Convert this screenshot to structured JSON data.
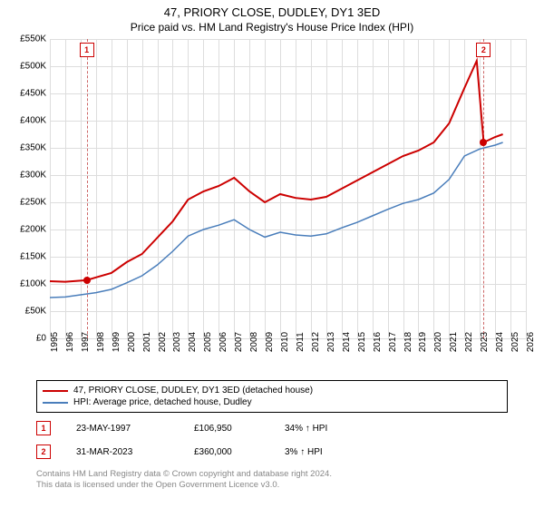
{
  "title": "47, PRIORY CLOSE, DUDLEY, DY1 3ED",
  "subtitle": "Price paid vs. HM Land Registry's House Price Index (HPI)",
  "chart": {
    "type": "line",
    "background_color": "#ffffff",
    "grid_color": "#dddddd",
    "grid_color_strong": "#eeeeee",
    "axis_color": "#000000",
    "y": {
      "min": 0,
      "max": 550000,
      "step": 50000,
      "labels": [
        "£0",
        "£50K",
        "£100K",
        "£150K",
        "£200K",
        "£250K",
        "£300K",
        "£350K",
        "£400K",
        "£450K",
        "£500K",
        "£550K"
      ],
      "label_fontsize": 10
    },
    "x": {
      "min": 1995,
      "max": 2026,
      "step": 1,
      "labels": [
        "1995",
        "1996",
        "1997",
        "1998",
        "1999",
        "2000",
        "2001",
        "2002",
        "2003",
        "2004",
        "2005",
        "2006",
        "2007",
        "2008",
        "2009",
        "2010",
        "2011",
        "2012",
        "2013",
        "2014",
        "2015",
        "2016",
        "2017",
        "2018",
        "2019",
        "2020",
        "2021",
        "2022",
        "2023",
        "2024",
        "2025",
        "2026"
      ],
      "label_fontsize": 10,
      "label_rotation": -90
    },
    "series": [
      {
        "name": "47, PRIORY CLOSE, DUDLEY, DY1 3ED (detached house)",
        "color": "#cc0000",
        "line_width": 2,
        "data": [
          [
            1995,
            105000
          ],
          [
            1996,
            104000
          ],
          [
            1997,
            106000
          ],
          [
            1997.4,
            106950
          ],
          [
            1998,
            112000
          ],
          [
            1999,
            120000
          ],
          [
            2000,
            140000
          ],
          [
            2001,
            155000
          ],
          [
            2002,
            185000
          ],
          [
            2003,
            215000
          ],
          [
            2004,
            255000
          ],
          [
            2005,
            270000
          ],
          [
            2006,
            280000
          ],
          [
            2007,
            295000
          ],
          [
            2008,
            270000
          ],
          [
            2009,
            250000
          ],
          [
            2010,
            265000
          ],
          [
            2011,
            258000
          ],
          [
            2012,
            255000
          ],
          [
            2013,
            260000
          ],
          [
            2014,
            275000
          ],
          [
            2015,
            290000
          ],
          [
            2016,
            305000
          ],
          [
            2017,
            320000
          ],
          [
            2018,
            335000
          ],
          [
            2019,
            345000
          ],
          [
            2020,
            360000
          ],
          [
            2021,
            395000
          ],
          [
            2022,
            460000
          ],
          [
            2022.8,
            510000
          ],
          [
            2023.25,
            360000
          ],
          [
            2024,
            370000
          ],
          [
            2024.5,
            375000
          ]
        ]
      },
      {
        "name": "HPI: Average price, detached house, Dudley",
        "color": "#4a7ebb",
        "line_width": 1.5,
        "data": [
          [
            1995,
            75000
          ],
          [
            1996,
            76000
          ],
          [
            1997,
            80000
          ],
          [
            1998,
            84000
          ],
          [
            1999,
            90000
          ],
          [
            2000,
            102000
          ],
          [
            2001,
            115000
          ],
          [
            2002,
            135000
          ],
          [
            2003,
            160000
          ],
          [
            2004,
            188000
          ],
          [
            2005,
            200000
          ],
          [
            2006,
            208000
          ],
          [
            2007,
            218000
          ],
          [
            2008,
            200000
          ],
          [
            2009,
            186000
          ],
          [
            2010,
            195000
          ],
          [
            2011,
            190000
          ],
          [
            2012,
            188000
          ],
          [
            2013,
            192000
          ],
          [
            2014,
            203000
          ],
          [
            2015,
            213000
          ],
          [
            2016,
            225000
          ],
          [
            2017,
            237000
          ],
          [
            2018,
            248000
          ],
          [
            2019,
            255000
          ],
          [
            2020,
            267000
          ],
          [
            2021,
            292000
          ],
          [
            2022,
            335000
          ],
          [
            2023,
            348000
          ],
          [
            2024,
            355000
          ],
          [
            2024.5,
            360000
          ]
        ]
      }
    ],
    "markers": [
      {
        "label": "1",
        "year": 1997.4,
        "color": "#cc0000"
      },
      {
        "label": "2",
        "year": 2023.25,
        "color": "#cc0000"
      }
    ],
    "marker_line_color": "#cc6666",
    "sale_points": [
      {
        "year": 1997.4,
        "price": 106950,
        "color": "#cc0000"
      },
      {
        "year": 2023.25,
        "price": 360000,
        "color": "#cc0000"
      }
    ]
  },
  "legend": {
    "items": [
      {
        "color": "#cc0000",
        "label": "47, PRIORY CLOSE, DUDLEY, DY1 3ED (detached house)"
      },
      {
        "color": "#4a7ebb",
        "label": "HPI: Average price, detached house, Dudley"
      }
    ]
  },
  "sales": [
    {
      "num": "1",
      "date": "23-MAY-1997",
      "price": "£106,950",
      "hpi": "34% ↑ HPI"
    },
    {
      "num": "2",
      "date": "31-MAR-2023",
      "price": "£360,000",
      "hpi": "3% ↑ HPI"
    }
  ],
  "footer": {
    "line1": "Contains HM Land Registry data © Crown copyright and database right 2024.",
    "line2": "This data is licensed under the Open Government Licence v3.0."
  }
}
